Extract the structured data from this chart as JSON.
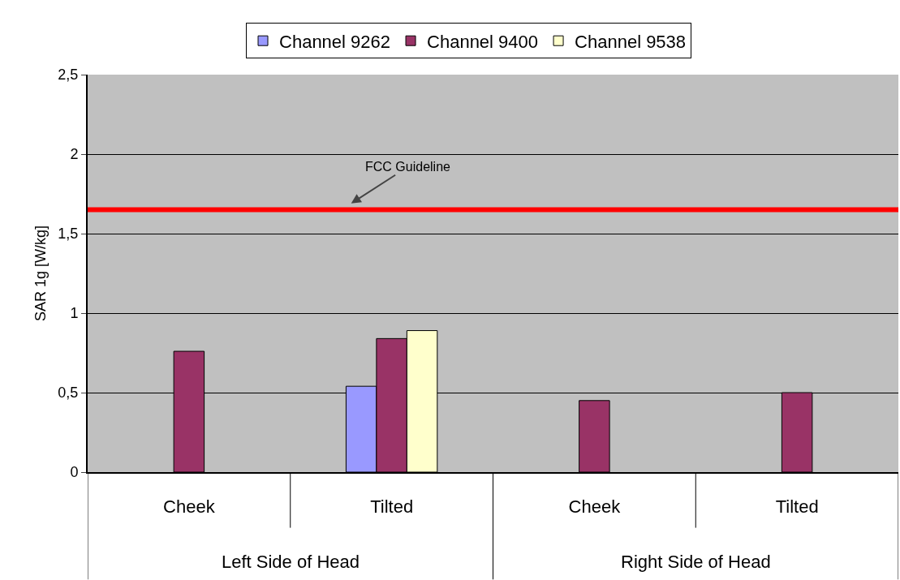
{
  "chart_data": {
    "type": "bar",
    "ylabel": "SAR 1g [W/kg]",
    "categories": [
      "Cheek",
      "Tilted",
      "Cheek",
      "Tilted"
    ],
    "series": [
      {
        "name": "Channel 9262",
        "color": "#9999ff",
        "values": [
          null,
          0.54,
          null,
          null
        ]
      },
      {
        "name": "Channel 9400",
        "color": "#993366",
        "values": [
          0.76,
          0.84,
          0.45,
          0.5
        ]
      },
      {
        "name": "Channel 9538",
        "color": "#ffffcc",
        "values": [
          null,
          0.89,
          null,
          null
        ]
      }
    ],
    "ylim": [
      0,
      2.5
    ],
    "yticks": [
      0,
      {
        "value": 0.5,
        "label": "0,5"
      },
      1,
      {
        "value": 1.5,
        "label": "1,5"
      },
      2,
      {
        "value": 2.5,
        "label": "2,5"
      }
    ],
    "grid": "y",
    "legend": "top",
    "ref_lines": [
      {
        "axis": "y",
        "value": 1.65,
        "label": "FCC Guideline",
        "color": "#ff0000"
      }
    ],
    "annotations": [
      "Left Side of Head",
      "Right Side of Head"
    ]
  }
}
